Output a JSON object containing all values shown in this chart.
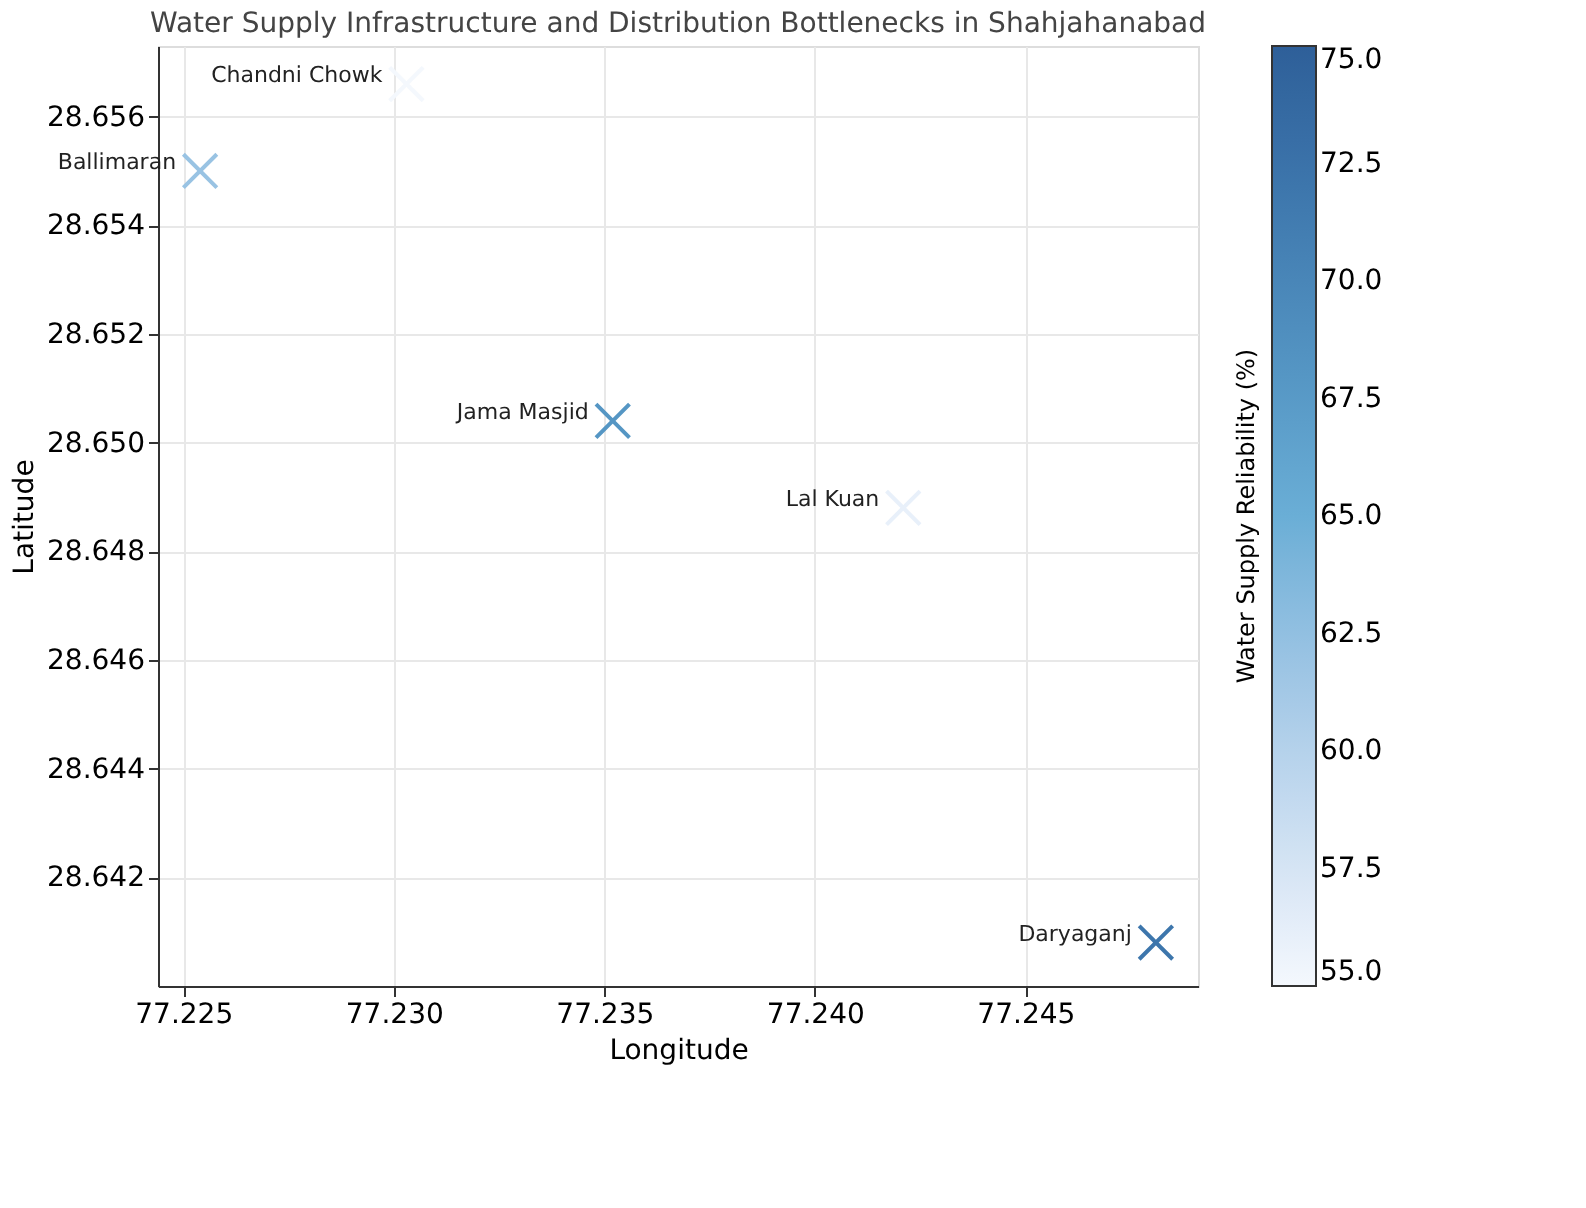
{
  "chart_data": {
    "type": "scatter",
    "title": "Water Supply Infrastructure and Distribution Bottlenecks in Shahjahanabad",
    "xlabel": "Longitude",
    "ylabel": "Latitude",
    "clabel": "Water Supply Reliability (%)",
    "x": [
      77.2303,
      77.2254,
      77.2352,
      77.2421,
      77.2481
    ],
    "values": [
      28.6566,
      28.655,
      28.6504,
      28.6488,
      28.6408
    ],
    "cvalues": [
      55,
      62,
      68,
      56,
      72
    ],
    "marker": "cross",
    "annotations": [
      {
        "text": "Chandni Chowk",
        "x": 77.2303,
        "y": 28.6566
      },
      {
        "text": "Ballimaran",
        "x": 77.2254,
        "y": 28.655
      },
      {
        "text": "Jama Masjid",
        "x": 77.2352,
        "y": 28.6504
      },
      {
        "text": "Lal Kuan",
        "x": 77.2421,
        "y": 28.6488
      },
      {
        "text": "Daryaganj",
        "x": 77.2481,
        "y": 28.6408
      }
    ],
    "xlim": [
      77.2244,
      77.2491
    ],
    "ylim": [
      28.64,
      28.6573
    ],
    "xticks": [
      77.225,
      {
        "value": 77.23,
        "label": "77.230"
      },
      77.235,
      {
        "value": 77.24,
        "label": "77.240"
      },
      77.245
    ],
    "yticks": [
      28.642,
      28.644,
      28.646,
      28.648,
      {
        "value": 28.65,
        "label": "28.650"
      },
      28.652,
      28.654,
      28.656
    ],
    "clim": [
      55,
      75
    ],
    "cticks": [
      {
        "value": 55,
        "label": "55.0"
      },
      57.5,
      {
        "value": 60,
        "label": "60.0"
      },
      62.5,
      {
        "value": 65,
        "label": "65.0"
      },
      67.5,
      {
        "value": 70,
        "label": "70.0"
      },
      72.5,
      {
        "value": 75,
        "label": "75.0"
      }
    ],
    "grid": true
  }
}
